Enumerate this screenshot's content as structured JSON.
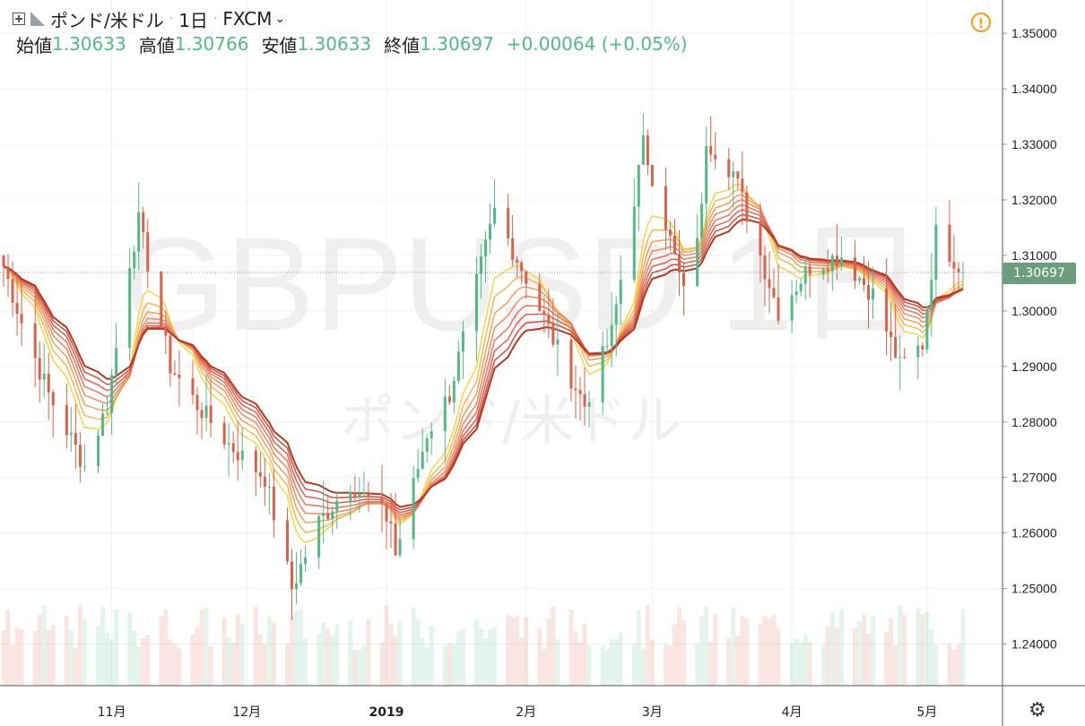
{
  "header": {
    "symbol_name": "ポンド/米ドル",
    "interval": "1日",
    "exchange": "FXCM",
    "open_label": "始値",
    "open": "1.30633",
    "high_label": "高値",
    "high": "1.30766",
    "low_label": "安値",
    "low": "1.30633",
    "close_label": "終値",
    "close": "1.30697",
    "change": "+0.00064 (+0.05%)"
  },
  "watermark": {
    "ticker": "GBPUSD",
    "interval": "1日",
    "name": "ポンド/米ドル"
  },
  "last_price": "1.30697",
  "colors": {
    "up": "#53b987",
    "down": "#d9624a",
    "ribbon": [
      "#f5d547",
      "#f2b955",
      "#f0a15c",
      "#ec8a60",
      "#e67560",
      "#dd6152",
      "#cf4f42",
      "#b5391f"
    ],
    "accent": "#6a9e7d"
  },
  "chart_data": {
    "type": "candlestick",
    "x_ticks": [
      "11月",
      "12月",
      "2019",
      "2月",
      "3月",
      "4月",
      "5月"
    ],
    "y_ticks": [
      "1.35000",
      "1.34000",
      "1.33000",
      "1.32000",
      "1.31000",
      "1.30000",
      "1.29000",
      "1.28000",
      "1.27000",
      "1.26000",
      "1.25000",
      "1.24000"
    ],
    "ylim": [
      1.2325,
      1.356
    ],
    "ohlc_keypoints": [
      {
        "date": "2018-10-08",
        "close": 1.308
      },
      {
        "date": "2018-10-12",
        "close": 1.298
      },
      {
        "date": "2018-10-18",
        "close": 1.285
      },
      {
        "date": "2018-10-26",
        "close": 1.272
      },
      {
        "date": "2018-10-31",
        "close": 1.283
      },
      {
        "date": "2018-11-05",
        "close": 1.309
      },
      {
        "date": "2018-11-07",
        "close": 1.316
      },
      {
        "date": "2018-11-14",
        "close": 1.29
      },
      {
        "date": "2018-11-20",
        "close": 1.283
      },
      {
        "date": "2018-11-27",
        "close": 1.276
      },
      {
        "date": "2018-12-05",
        "close": 1.27
      },
      {
        "date": "2018-12-11",
        "close": 1.25
      },
      {
        "date": "2018-12-17",
        "close": 1.262
      },
      {
        "date": "2018-12-24",
        "close": 1.269
      },
      {
        "date": "2019-01-02",
        "close": 1.262
      },
      {
        "date": "2019-01-03",
        "close": 1.256
      },
      {
        "date": "2019-01-10",
        "close": 1.278
      },
      {
        "date": "2019-01-15",
        "close": 1.285
      },
      {
        "date": "2019-01-25",
        "close": 1.318
      },
      {
        "date": "2019-02-01",
        "close": 1.306
      },
      {
        "date": "2019-02-08",
        "close": 1.293
      },
      {
        "date": "2019-02-14",
        "close": 1.283
      },
      {
        "date": "2019-02-20",
        "close": 1.296
      },
      {
        "date": "2019-02-27",
        "close": 1.33
      },
      {
        "date": "2019-03-04",
        "close": 1.316
      },
      {
        "date": "2019-03-08",
        "close": 1.303
      },
      {
        "date": "2019-03-12",
        "close": 1.318
      },
      {
        "date": "2019-03-13",
        "close": 1.331
      },
      {
        "date": "2019-03-19",
        "close": 1.325
      },
      {
        "date": "2019-03-29",
        "close": 1.3
      },
      {
        "date": "2019-04-05",
        "close": 1.308
      },
      {
        "date": "2019-04-12",
        "close": 1.31
      },
      {
        "date": "2019-04-19",
        "close": 1.303
      },
      {
        "date": "2019-04-25",
        "close": 1.29
      },
      {
        "date": "2019-04-30",
        "close": 1.294
      },
      {
        "date": "2019-05-03",
        "close": 1.314
      },
      {
        "date": "2019-05-09",
        "close": 1.307
      }
    ],
    "grid": true,
    "overlay": "Moving average ribbon (8 lines)",
    "volume_bars": true,
    "last_value": 1.30697
  }
}
